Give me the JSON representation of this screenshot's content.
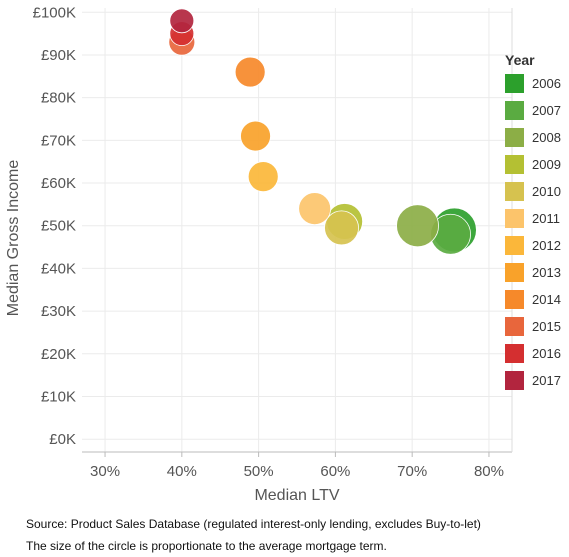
{
  "chart_data": {
    "type": "scatter",
    "title": "",
    "xlabel": "Median LTV",
    "ylabel": "Median Gross Income",
    "xlim": [
      27,
      83
    ],
    "ylim": [
      -3,
      101
    ],
    "x_ticks": [
      30,
      40,
      50,
      60,
      70,
      80
    ],
    "x_tick_labels": [
      "30%",
      "40%",
      "50%",
      "60%",
      "70%",
      "80%"
    ],
    "y_ticks": [
      0,
      10,
      20,
      30,
      40,
      50,
      60,
      70,
      80,
      90,
      100
    ],
    "y_tick_labels": [
      "£0K",
      "£10K",
      "£20K",
      "£30K",
      "£40K",
      "£50K",
      "£60K",
      "£70K",
      "£80K",
      "£90K",
      "£100K"
    ],
    "grid": true,
    "legend": {
      "title": "Year",
      "position": "right",
      "entries": [
        {
          "label": "2006",
          "color": "#2ca02c"
        },
        {
          "label": "2007",
          "color": "#5aab41"
        },
        {
          "label": "2008",
          "color": "#8cae46"
        },
        {
          "label": "2009",
          "color": "#b4c033"
        },
        {
          "label": "2010",
          "color": "#d6c24f"
        },
        {
          "label": "2011",
          "color": "#fcc46b"
        },
        {
          "label": "2012",
          "color": "#fbb73a"
        },
        {
          "label": "2013",
          "color": "#f9a22a"
        },
        {
          "label": "2014",
          "color": "#f6892a"
        },
        {
          "label": "2015",
          "color": "#e8663c"
        },
        {
          "label": "2016",
          "color": "#d42f30"
        },
        {
          "label": "2017",
          "color": "#b2253e"
        }
      ]
    },
    "size_encoding": "average mortgage term",
    "points": [
      {
        "year": "2006",
        "x": 75.5,
        "y": 49,
        "size": 22
      },
      {
        "year": "2007",
        "x": 75.0,
        "y": 48,
        "size": 20
      },
      {
        "year": "2008",
        "x": 70.7,
        "y": 50,
        "size": 21
      },
      {
        "year": "2009",
        "x": 61.2,
        "y": 51,
        "size": 18
      },
      {
        "year": "2010",
        "x": 60.8,
        "y": 49.5,
        "size": 17
      },
      {
        "year": "2011",
        "x": 57.3,
        "y": 54,
        "size": 16
      },
      {
        "year": "2012",
        "x": 50.6,
        "y": 61.5,
        "size": 15
      },
      {
        "year": "2013",
        "x": 49.6,
        "y": 71,
        "size": 15
      },
      {
        "year": "2014",
        "x": 48.9,
        "y": 86,
        "size": 15
      },
      {
        "year": "2015",
        "x": 40.0,
        "y": 93,
        "size": 13
      },
      {
        "year": "2016",
        "x": 40.0,
        "y": 95,
        "size": 12
      },
      {
        "year": "2017",
        "x": 40.0,
        "y": 98,
        "size": 12
      }
    ]
  },
  "footnotes": {
    "source": "Source: Product Sales Database (regulated interest-only lending, excludes Buy-to-let)",
    "size_note": "The size of the circle is proportionate to the average mortgage term."
  }
}
